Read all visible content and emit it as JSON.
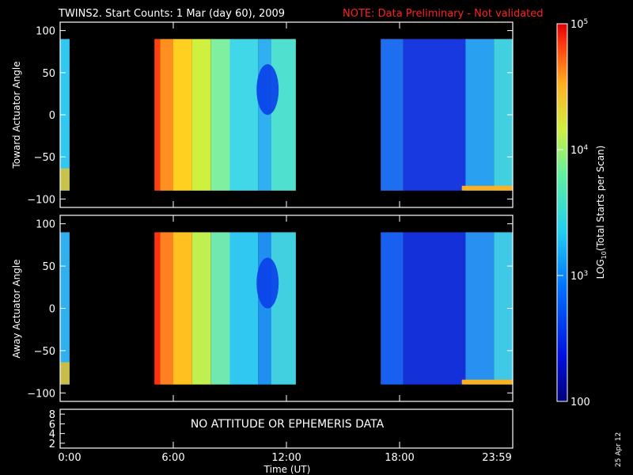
{
  "title": {
    "main": "TWINS2. Start Counts:  1 Mar (day  60), 2009",
    "note": "NOTE: Data Preliminary - Not validated"
  },
  "colors": {
    "background": "#000000",
    "frame": "#ffffff",
    "note": "#ff2020"
  },
  "date_stamp": "25 Apr 12",
  "ephemeris_message": "NO ATTITUDE OR EPHEMERIS DATA",
  "chart_data": [
    {
      "type": "heatmap",
      "ylabel": "Toward Actuator Angle",
      "ylim": [
        -110,
        110
      ],
      "yticks": [
        100,
        50,
        0,
        -50,
        -100
      ],
      "y_data_range": [
        -90,
        90
      ],
      "xlim_hours": [
        0,
        24
      ],
      "data_segments_hours": [
        [
          0,
          0.5
        ],
        [
          5.0,
          12.5
        ],
        [
          17.0,
          24.0
        ]
      ],
      "bands": [
        {
          "x": [
            0.0,
            0.5
          ],
          "color": "#30c8f0",
          "edge": "#f0c020"
        },
        {
          "x": [
            5.0,
            5.3
          ],
          "color": "#ff4010"
        },
        {
          "x": [
            5.3,
            6.0
          ],
          "color": "#ff9020"
        },
        {
          "x": [
            6.0,
            7.0
          ],
          "color": "#ffd020"
        },
        {
          "x": [
            7.0,
            8.0
          ],
          "color": "#d0f040"
        },
        {
          "x": [
            8.0,
            9.0
          ],
          "color": "#80f0a0"
        },
        {
          "x": [
            9.0,
            10.5
          ],
          "color": "#40d8e8"
        },
        {
          "x": [
            10.5,
            11.2
          ],
          "color": "#30b0f0"
        },
        {
          "x": [
            11.2,
            12.5
          ],
          "color": "#50e0d0"
        },
        {
          "x": [
            17.0,
            18.2
          ],
          "color": "#1e6ef0"
        },
        {
          "x": [
            18.2,
            21.5
          ],
          "color": "#1838e0"
        },
        {
          "x": [
            21.5,
            23.0
          ],
          "color": "#2aa0f0"
        },
        {
          "x": [
            23.0,
            24.0
          ],
          "color": "#40d0e0"
        }
      ]
    },
    {
      "type": "heatmap",
      "ylabel": "Away Actuator Angle",
      "ylim": [
        -110,
        110
      ],
      "yticks": [
        100,
        50,
        0,
        -50,
        -100
      ],
      "y_data_range": [
        -90,
        90
      ],
      "xlim_hours": [
        0,
        24
      ],
      "data_segments_hours": [
        [
          0,
          0.5
        ],
        [
          5.0,
          12.5
        ],
        [
          17.0,
          24.0
        ]
      ],
      "bands": [
        {
          "x": [
            0.0,
            0.5
          ],
          "color": "#30b0f0",
          "edge": "#f0c020"
        },
        {
          "x": [
            5.0,
            5.3
          ],
          "color": "#ff3010"
        },
        {
          "x": [
            5.3,
            6.0
          ],
          "color": "#ff8020"
        },
        {
          "x": [
            6.0,
            7.0
          ],
          "color": "#ffc020"
        },
        {
          "x": [
            7.0,
            8.0
          ],
          "color": "#c0f050"
        },
        {
          "x": [
            8.0,
            9.0
          ],
          "color": "#70e8b0"
        },
        {
          "x": [
            9.0,
            10.5
          ],
          "color": "#30c8f0"
        },
        {
          "x": [
            10.5,
            11.2
          ],
          "color": "#2090f0"
        },
        {
          "x": [
            11.2,
            12.5
          ],
          "color": "#40d0e0"
        },
        {
          "x": [
            17.0,
            18.2
          ],
          "color": "#1a60f0"
        },
        {
          "x": [
            18.2,
            21.5
          ],
          "color": "#1430d8"
        },
        {
          "x": [
            21.5,
            23.0
          ],
          "color": "#2890f0"
        },
        {
          "x": [
            23.0,
            24.0
          ],
          "color": "#40c8e8"
        }
      ]
    },
    {
      "type": "line",
      "yticks": [
        8,
        6,
        4,
        2
      ],
      "ylim": [
        1,
        9
      ]
    }
  ],
  "xaxis": {
    "label": "Time (UT)",
    "ticks": [
      {
        "label": "0:00",
        "hour": 0
      },
      {
        "label": "6:00",
        "hour": 6
      },
      {
        "label": "12:00",
        "hour": 12
      },
      {
        "label": "18:00",
        "hour": 18
      },
      {
        "label": "23:59",
        "hour": 24
      }
    ]
  },
  "colorbar": {
    "label": "LOG10(Total Starts per Scan)",
    "ticks": [
      {
        "label": "100",
        "value": 100
      },
      {
        "label": "10^3",
        "value": 1000
      },
      {
        "label": "10^4",
        "value": 10000
      },
      {
        "label": "10^5",
        "value": 100000
      }
    ],
    "range": [
      100,
      100000
    ],
    "scale": "log"
  }
}
